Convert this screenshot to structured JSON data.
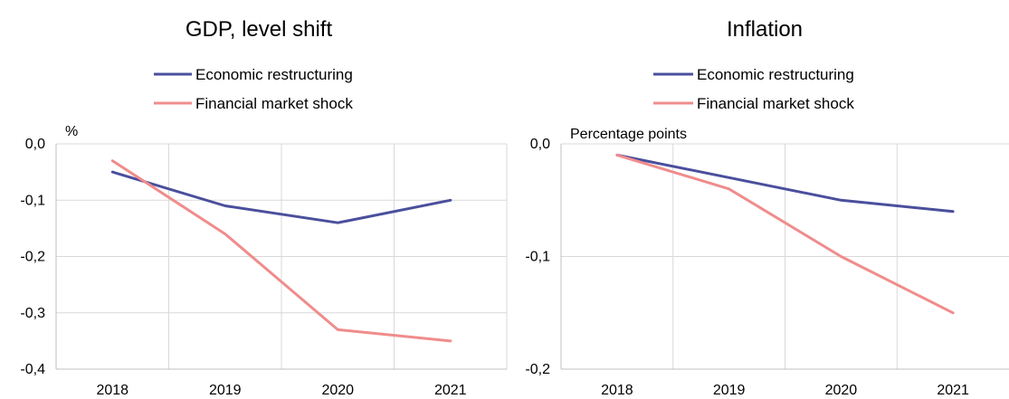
{
  "colors": {
    "economic": "#4a4f9c",
    "financial": "#f08c8c"
  },
  "chart_data": [
    {
      "type": "line",
      "title": "GDP, level shift",
      "ylabel": "%",
      "categories": [
        "2018",
        "2019",
        "2020",
        "2021"
      ],
      "ylim": [
        -0.4,
        0.0
      ],
      "yticks": [
        "0,0",
        "-0,1",
        "-0,2",
        "-0,3",
        "-0,4"
      ],
      "ytick_values": [
        0.0,
        -0.1,
        -0.2,
        -0.3,
        -0.4
      ],
      "legend": "top-center",
      "series": [
        {
          "name": "Economic restructuring",
          "values": [
            -0.05,
            -0.11,
            -0.14,
            -0.1
          ]
        },
        {
          "name": "Financial market shock",
          "values": [
            -0.03,
            -0.16,
            -0.33,
            -0.35
          ]
        }
      ]
    },
    {
      "type": "line",
      "title": "Inflation",
      "ylabel": "Percentage points",
      "categories": [
        "2018",
        "2019",
        "2020",
        "2021"
      ],
      "ylim": [
        -0.2,
        0.0
      ],
      "yticks": [
        "0,0",
        "-0,1",
        "-0,2"
      ],
      "ytick_values": [
        0.0,
        -0.1,
        -0.2
      ],
      "legend": "top-center",
      "series": [
        {
          "name": "Economic restructuring",
          "values": [
            -0.01,
            -0.03,
            -0.05,
            -0.06
          ]
        },
        {
          "name": "Financial market shock",
          "values": [
            -0.01,
            -0.04,
            -0.1,
            -0.15
          ]
        }
      ]
    }
  ]
}
